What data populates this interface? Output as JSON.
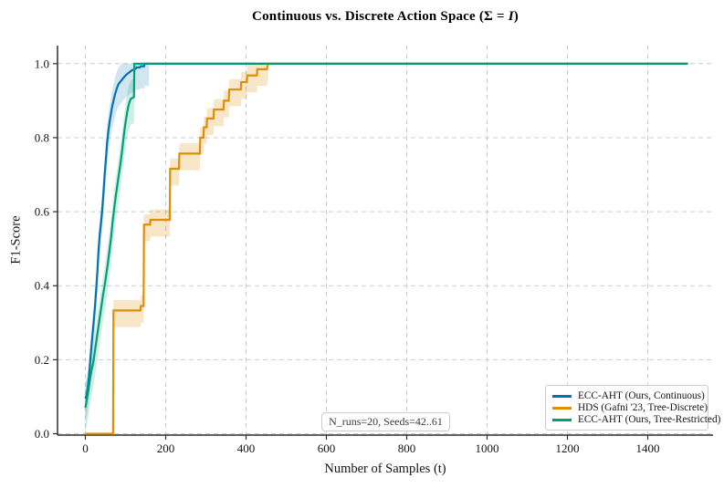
{
  "figure": {
    "title": {
      "prefix": "Continuous vs. Discrete Action Space (Σ = ",
      "italic": "I",
      "suffix": ")"
    }
  },
  "chart_data": {
    "type": "line",
    "title": "Continuous vs. Discrete Action Space (Σ = I)",
    "xlabel": "Number of Samples (t)",
    "ylabel": "F1-Score",
    "xlim": [
      -75,
      1575
    ],
    "ylim": [
      0,
      1.05
    ],
    "grid": "dashed, both axes",
    "legend_position": "lower right",
    "annotation": "N_runs=20, Seeds=42..61",
    "xticks": {
      "values": [
        0,
        200,
        400,
        600,
        800,
        1000,
        1200,
        1400
      ],
      "labels": [
        "0",
        "200",
        "400",
        "600",
        "800",
        "1000",
        "1200",
        "1400"
      ]
    },
    "yticks": {
      "values": [
        0.0,
        0.2,
        0.4,
        0.6,
        0.8,
        1.0
      ],
      "labels": [
        "0.0",
        "0.2",
        "0.4",
        "0.6",
        "0.8",
        "1.0"
      ]
    },
    "series": [
      {
        "name": "ecc-aht-continuous",
        "label": "ECC-AHT (Ours, Continuous)",
        "color": "#0173b2",
        "band": {
          "upper": 0.045,
          "lower": 0.06,
          "start": 0,
          "end": 158,
          "opacity": 0.18
        },
        "points": [
          [
            0,
            0.095
          ],
          [
            3,
            0.105
          ],
          [
            6,
            0.125
          ],
          [
            9,
            0.155
          ],
          [
            12,
            0.195
          ],
          [
            15,
            0.235
          ],
          [
            18,
            0.27
          ],
          [
            21,
            0.305
          ],
          [
            24,
            0.345
          ],
          [
            27,
            0.39
          ],
          [
            30,
            0.44
          ],
          [
            33,
            0.5
          ],
          [
            36,
            0.54
          ],
          [
            39,
            0.57
          ],
          [
            42,
            0.605
          ],
          [
            45,
            0.65
          ],
          [
            48,
            0.7
          ],
          [
            51,
            0.74
          ],
          [
            54,
            0.785
          ],
          [
            57,
            0.815
          ],
          [
            60,
            0.84
          ],
          [
            63,
            0.86
          ],
          [
            66,
            0.88
          ],
          [
            70,
            0.9
          ],
          [
            74,
            0.918
          ],
          [
            78,
            0.932
          ],
          [
            82,
            0.944
          ],
          [
            86,
            0.95
          ],
          [
            90,
            0.955
          ],
          [
            95,
            0.962
          ],
          [
            100,
            0.968
          ],
          [
            105,
            0.973
          ],
          [
            110,
            0.977
          ],
          [
            114,
            0.981
          ],
          [
            120,
            0.984
          ],
          [
            126,
            0.987
          ],
          [
            128,
            0.99
          ],
          [
            136,
            0.99
          ],
          [
            138,
            0.993
          ],
          [
            146,
            0.993
          ],
          [
            148,
            1.0
          ],
          [
            1500,
            1.0
          ]
        ]
      },
      {
        "name": "hds-tree-discrete",
        "label": "HDS (Gafni '23, Tree-Discrete)",
        "color": "#de8f05",
        "band": {
          "upper": 0.028,
          "lower": 0.045,
          "start": 69,
          "end": 455,
          "opacity": 0.22
        },
        "points": [
          [
            0,
            0
          ],
          [
            69,
            0
          ],
          [
            70,
            0.333
          ],
          [
            137,
            0.333
          ],
          [
            138,
            0.345
          ],
          [
            145,
            0.345
          ],
          [
            146,
            0.565
          ],
          [
            161,
            0.565
          ],
          [
            162,
            0.578
          ],
          [
            210,
            0.578
          ],
          [
            211,
            0.716
          ],
          [
            233,
            0.716
          ],
          [
            234,
            0.757
          ],
          [
            285,
            0.757
          ],
          [
            286,
            0.8
          ],
          [
            294,
            0.8
          ],
          [
            295,
            0.828
          ],
          [
            302,
            0.828
          ],
          [
            303,
            0.852
          ],
          [
            319,
            0.852
          ],
          [
            320,
            0.876
          ],
          [
            344,
            0.876
          ],
          [
            345,
            0.9
          ],
          [
            357,
            0.9
          ],
          [
            358,
            0.93
          ],
          [
            387,
            0.93
          ],
          [
            388,
            0.95
          ],
          [
            402,
            0.95
          ],
          [
            403,
            0.968
          ],
          [
            427,
            0.968
          ],
          [
            428,
            0.985
          ],
          [
            452,
            0.985
          ],
          [
            455,
            1.0
          ],
          [
            1500,
            1.0
          ]
        ]
      },
      {
        "name": "ecc-aht-tree-restricted",
        "label": "ECC-AHT (Ours, Tree-Restricted)",
        "color": "#029e73",
        "band": {
          "upper": 0.05,
          "lower": 0.07,
          "start": 0,
          "end": 123,
          "opacity": 0.18
        },
        "points": [
          [
            0,
            0.07
          ],
          [
            4,
            0.095
          ],
          [
            8,
            0.12
          ],
          [
            12,
            0.15
          ],
          [
            16,
            0.175
          ],
          [
            20,
            0.195
          ],
          [
            24,
            0.225
          ],
          [
            28,
            0.255
          ],
          [
            32,
            0.285
          ],
          [
            36,
            0.315
          ],
          [
            40,
            0.345
          ],
          [
            44,
            0.375
          ],
          [
            48,
            0.4
          ],
          [
            52,
            0.43
          ],
          [
            56,
            0.46
          ],
          [
            60,
            0.495
          ],
          [
            64,
            0.53
          ],
          [
            68,
            0.575
          ],
          [
            72,
            0.61
          ],
          [
            76,
            0.645
          ],
          [
            80,
            0.675
          ],
          [
            84,
            0.705
          ],
          [
            88,
            0.735
          ],
          [
            92,
            0.77
          ],
          [
            95,
            0.8
          ],
          [
            98,
            0.825
          ],
          [
            101,
            0.848
          ],
          [
            104,
            0.868
          ],
          [
            107,
            0.885
          ],
          [
            110,
            0.897
          ],
          [
            113,
            0.905
          ],
          [
            118,
            0.908
          ],
          [
            121,
            0.91
          ],
          [
            122,
            1.0
          ],
          [
            1500,
            1.0
          ]
        ]
      }
    ]
  }
}
